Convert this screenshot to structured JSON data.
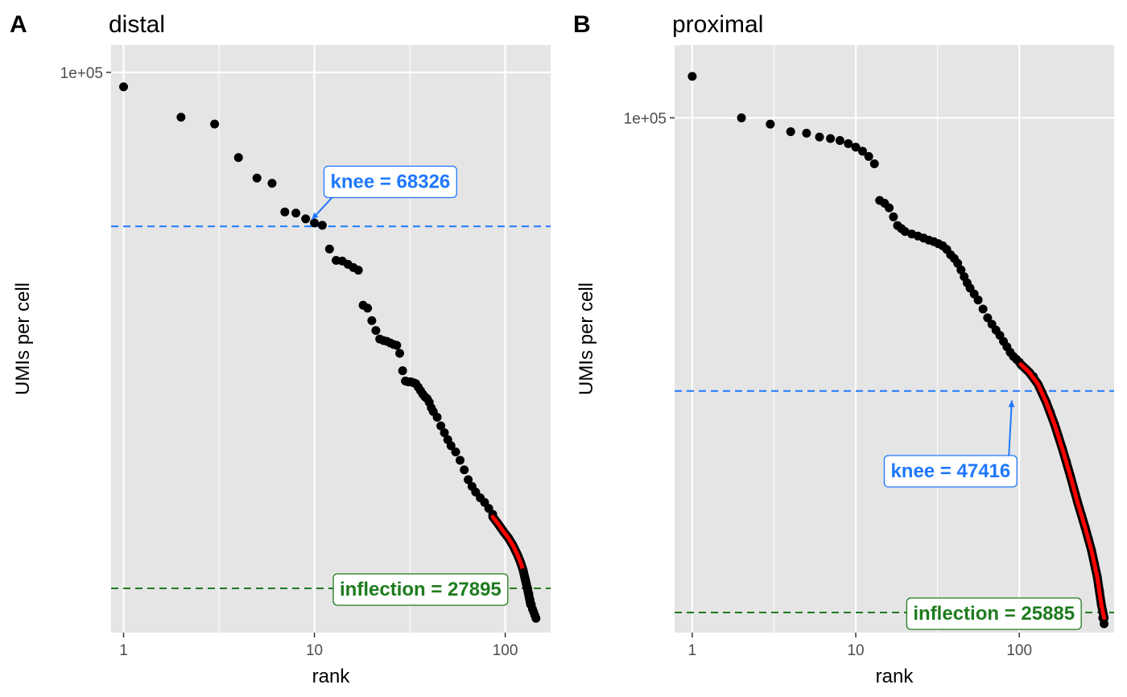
{
  "chart_data": [
    {
      "type": "scatter",
      "panel_label": "A",
      "title": "distal",
      "xlabel": "rank",
      "ylabel": "UMIs per cell",
      "x_scale": "log10",
      "y_scale": "log10",
      "xlim": [
        0.86,
        173
      ],
      "ylim": [
        25000,
        107000
      ],
      "x_ticks": [
        {
          "value": 1,
          "label": "1"
        },
        {
          "value": 10,
          "label": "10"
        },
        {
          "value": 100,
          "label": "100"
        }
      ],
      "y_ticks": [
        {
          "value": 100000,
          "label": "1e+05"
        }
      ],
      "grid": true,
      "legend": "none",
      "points_rank_umi": [
        [
          1,
          96500
        ],
        [
          2,
          89500
        ],
        [
          3,
          88000
        ],
        [
          4,
          81000
        ],
        [
          5,
          77000
        ],
        [
          6,
          76000
        ],
        [
          7,
          70800
        ],
        [
          8,
          70600
        ],
        [
          9,
          69600
        ],
        [
          10,
          68900
        ],
        [
          11,
          68500
        ],
        [
          12,
          64600
        ],
        [
          13,
          62800
        ],
        [
          14,
          62700
        ],
        [
          15,
          62200
        ],
        [
          16,
          61700
        ],
        [
          17,
          61300
        ],
        [
          18,
          56200
        ],
        [
          19,
          55800
        ],
        [
          20,
          54100
        ],
        [
          21,
          52800
        ],
        [
          22,
          51700
        ],
        [
          23,
          51500
        ],
        [
          24,
          51400
        ],
        [
          25,
          51200
        ],
        [
          26,
          51000
        ],
        [
          27,
          50900
        ],
        [
          28,
          49900
        ],
        [
          29,
          47800
        ],
        [
          30,
          46600
        ],
        [
          31,
          46500
        ],
        [
          32,
          46500
        ],
        [
          33,
          46400
        ],
        [
          34,
          46300
        ],
        [
          35,
          45900
        ],
        [
          36,
          45500
        ],
        [
          37,
          45100
        ],
        [
          38,
          44800
        ],
        [
          39,
          44600
        ],
        [
          40,
          44200
        ],
        [
          41,
          43600
        ],
        [
          42,
          43200
        ],
        [
          44,
          42600
        ],
        [
          46,
          41700
        ],
        [
          48,
          41000
        ],
        [
          50,
          40300
        ],
        [
          52,
          39700
        ],
        [
          55,
          39100
        ],
        [
          58,
          38300
        ],
        [
          61,
          37400
        ],
        [
          64,
          36500
        ],
        [
          67,
          35900
        ],
        [
          70,
          35400
        ],
        [
          74,
          34900
        ],
        [
          78,
          34500
        ],
        [
          82,
          34000
        ],
        [
          86,
          33500
        ]
      ],
      "fitted_segment_rank_umi": [
        [
          86,
          33300
        ],
        [
          92,
          32700
        ],
        [
          98,
          32100
        ],
        [
          104,
          31600
        ],
        [
          110,
          31000
        ],
        [
          116,
          30300
        ],
        [
          120,
          29800
        ],
        [
          124,
          29200
        ],
        [
          128,
          28400
        ],
        [
          132,
          27600
        ],
        [
          136,
          26800
        ]
      ],
      "tail_points_rank_umi": [
        [
          125,
          29000
        ],
        [
          127,
          28600
        ],
        [
          129,
          28200
        ],
        [
          131,
          27900
        ],
        [
          133,
          27500
        ],
        [
          135,
          27100
        ],
        [
          137,
          26800
        ],
        [
          139,
          26500
        ],
        [
          141,
          26300
        ],
        [
          143,
          26100
        ],
        [
          145,
          25900
        ]
      ],
      "hlines": [
        {
          "name": "knee",
          "y": 68326,
          "color": "#1f78ff"
        },
        {
          "name": "inflection",
          "y": 27895,
          "color": "#1e7b1e"
        }
      ],
      "annotations": [
        {
          "text": "knee = 68326",
          "color": "#1f78ff",
          "x": 25,
          "y": 76500,
          "arrow_to": [
            9.7,
            69500
          ]
        },
        {
          "text": "inflection = 27895",
          "color": "#1e7b1e",
          "x": 36,
          "y": 27895,
          "arrow_to": null
        }
      ]
    },
    {
      "type": "scatter",
      "panel_label": "B",
      "title": "proximal",
      "xlabel": "rank",
      "ylabel": "UMIs per cell",
      "x_scale": "log10",
      "y_scale": "log10",
      "xlim": [
        0.78,
        380
      ],
      "ylim": [
        24500,
        122000
      ],
      "x_ticks": [
        {
          "value": 1,
          "label": "1"
        },
        {
          "value": 10,
          "label": "10"
        },
        {
          "value": 100,
          "label": "100"
        }
      ],
      "y_ticks": [
        {
          "value": 100000,
          "label": "1e+05"
        }
      ],
      "grid": true,
      "legend": "none",
      "points_rank_umi": [
        [
          1,
          112000
        ],
        [
          2,
          100000
        ],
        [
          3,
          98300
        ],
        [
          4,
          96300
        ],
        [
          5,
          95900
        ],
        [
          6,
          94900
        ],
        [
          7,
          94500
        ],
        [
          8,
          94000
        ],
        [
          9,
          93200
        ],
        [
          10,
          92300
        ],
        [
          11,
          91300
        ],
        [
          12,
          90000
        ],
        [
          13,
          88200
        ],
        [
          14,
          79800
        ],
        [
          15,
          79200
        ],
        [
          16,
          78200
        ],
        [
          17,
          76300
        ],
        [
          18,
          74500
        ],
        [
          19,
          73900
        ],
        [
          20,
          73300
        ],
        [
          22,
          72800
        ],
        [
          24,
          72400
        ],
        [
          26,
          72000
        ],
        [
          28,
          71600
        ],
        [
          30,
          71300
        ],
        [
          32,
          70900
        ],
        [
          34,
          70500
        ],
        [
          36,
          69800
        ],
        [
          38,
          68800
        ],
        [
          40,
          68100
        ],
        [
          42,
          67200
        ],
        [
          44,
          66000
        ],
        [
          46,
          64800
        ],
        [
          48,
          63700
        ],
        [
          50,
          62800
        ],
        [
          53,
          61800
        ],
        [
          56,
          60800
        ],
        [
          60,
          59300
        ],
        [
          64,
          57900
        ],
        [
          68,
          56900
        ],
        [
          72,
          56000
        ],
        [
          76,
          55200
        ],
        [
          80,
          54300
        ],
        [
          84,
          53500
        ],
        [
          88,
          52700
        ],
        [
          92,
          52100
        ],
        [
          96,
          51700
        ],
        [
          100,
          51300
        ],
        [
          104,
          50800
        ],
        [
          110,
          50300
        ],
        [
          116,
          49800
        ],
        [
          122,
          49300
        ],
        [
          130,
          48300
        ],
        [
          138,
          47200
        ],
        [
          146,
          46000
        ],
        [
          155,
          44700
        ],
        [
          164,
          43300
        ],
        [
          174,
          41800
        ],
        [
          184,
          40400
        ],
        [
          194,
          39100
        ],
        [
          205,
          37600
        ],
        [
          216,
          36200
        ],
        [
          228,
          34900
        ],
        [
          240,
          33800
        ],
        [
          252,
          32700
        ],
        [
          264,
          31700
        ],
        [
          276,
          30700
        ],
        [
          288,
          29600
        ],
        [
          300,
          28500
        ],
        [
          310,
          27400
        ],
        [
          318,
          26400
        ],
        [
          324,
          25500
        ],
        [
          330,
          25100
        ]
      ],
      "fitted_segment_rank_umi": [
        [
          102,
          51000
        ],
        [
          115,
          49900
        ],
        [
          130,
          48300
        ],
        [
          146,
          46000
        ],
        [
          164,
          43300
        ],
        [
          184,
          40400
        ],
        [
          205,
          37600
        ],
        [
          228,
          34900
        ],
        [
          252,
          32700
        ],
        [
          276,
          30700
        ],
        [
          300,
          28500
        ],
        [
          318,
          26400
        ],
        [
          330,
          25500
        ]
      ],
      "tail_points_rank_umi": [],
      "hlines": [
        {
          "name": "knee",
          "y": 47416,
          "color": "#1f78ff"
        },
        {
          "name": "inflection",
          "y": 25885,
          "color": "#1e7b1e"
        }
      ],
      "annotations": [
        {
          "text": "knee = 47416",
          "color": "#1f78ff",
          "x": 38,
          "y": 38200,
          "arrow_to": [
            90,
            46200
          ]
        },
        {
          "text": "inflection = 25885",
          "color": "#1e7b1e",
          "x": 70,
          "y": 25885,
          "arrow_to": null
        }
      ]
    }
  ],
  "colors": {
    "panel_background": "#e5e5e5",
    "grid_line": "#ffffff",
    "points": "#000000",
    "fitted_segment": "#ff0000",
    "knee": "#1f78ff",
    "inflection": "#1e7b1e"
  }
}
